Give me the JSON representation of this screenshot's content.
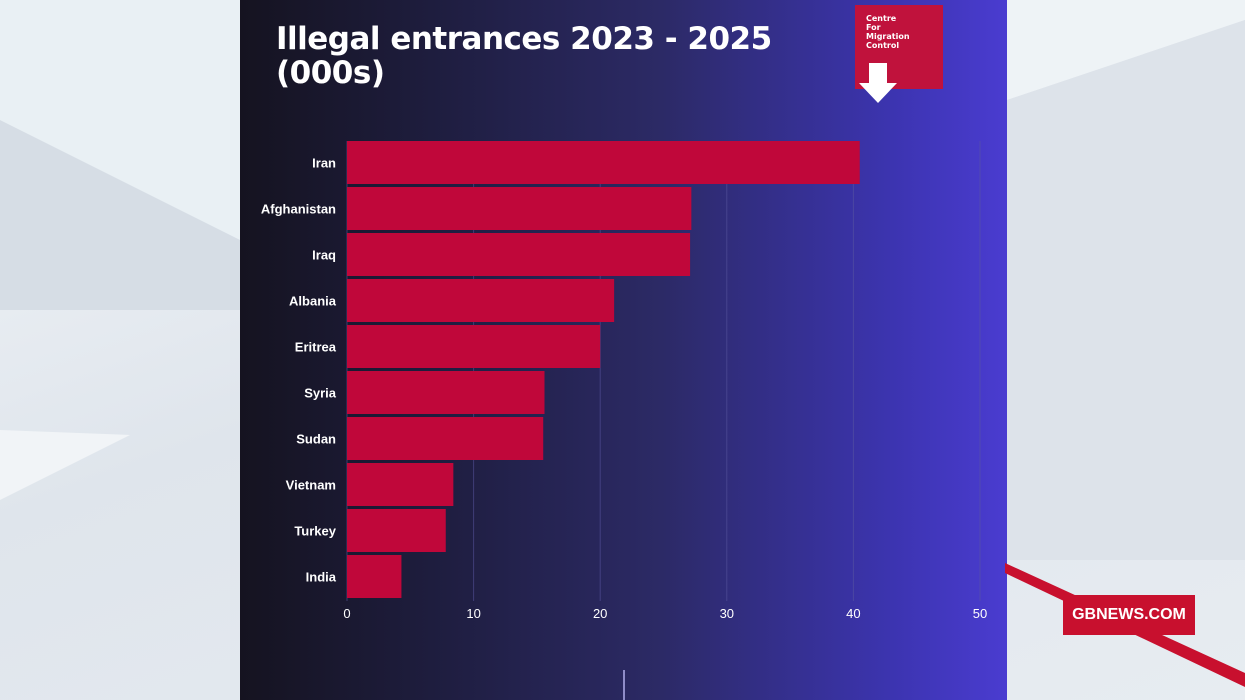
{
  "colors": {
    "bar": "#c0073a",
    "grid": "#5a57a0",
    "text": "#ffffff",
    "accent": "#c8102e"
  },
  "logo": {
    "text": "Centre\nFor\nMigration\nControl",
    "icon": "down-arrow-icon"
  },
  "badge": {
    "label": "GBNEWS.COM"
  },
  "chart_data": {
    "type": "bar",
    "orientation": "horizontal",
    "title": "Illegal entrances 2023 - 2025 (000s)",
    "categories": [
      "Iran",
      "Afghanistan",
      "Iraq",
      "Albania",
      "Eritrea",
      "Syria",
      "Sudan",
      "Vietnam",
      "Turkey",
      "India"
    ],
    "values": [
      40.5,
      27.2,
      27.1,
      21.1,
      20.0,
      15.6,
      15.5,
      8.4,
      7.8,
      4.3
    ],
    "xlim": [
      0,
      50
    ],
    "xticks": [
      "0",
      "10",
      "20",
      "30",
      "40",
      "50"
    ],
    "xlabel": "",
    "ylabel": "",
    "grid": true,
    "legend": "none"
  }
}
